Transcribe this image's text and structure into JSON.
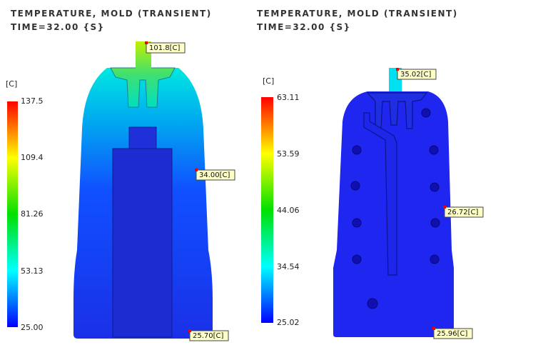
{
  "panels": [
    {
      "title": "TEMPERATURE, MOLD (TRANSIENT)",
      "time": "TIME=32.00 {S}",
      "unit": "[C]",
      "scale": [
        "137.5",
        "109.4",
        "81.26",
        "53.13",
        "25.00"
      ],
      "probes": [
        "101.8[C]",
        "34.00[C]",
        "25.70[C]"
      ]
    },
    {
      "title": "TEMPERATURE, MOLD (TRANSIENT)",
      "time": "TIME=32.00 {S}",
      "unit": "[C]",
      "scale": [
        "63.11",
        "53.59",
        "44.06",
        "34.54",
        "25.02"
      ],
      "probes": [
        "35.02[C]",
        "26.72[C]",
        "25.96[C]"
      ]
    }
  ]
}
